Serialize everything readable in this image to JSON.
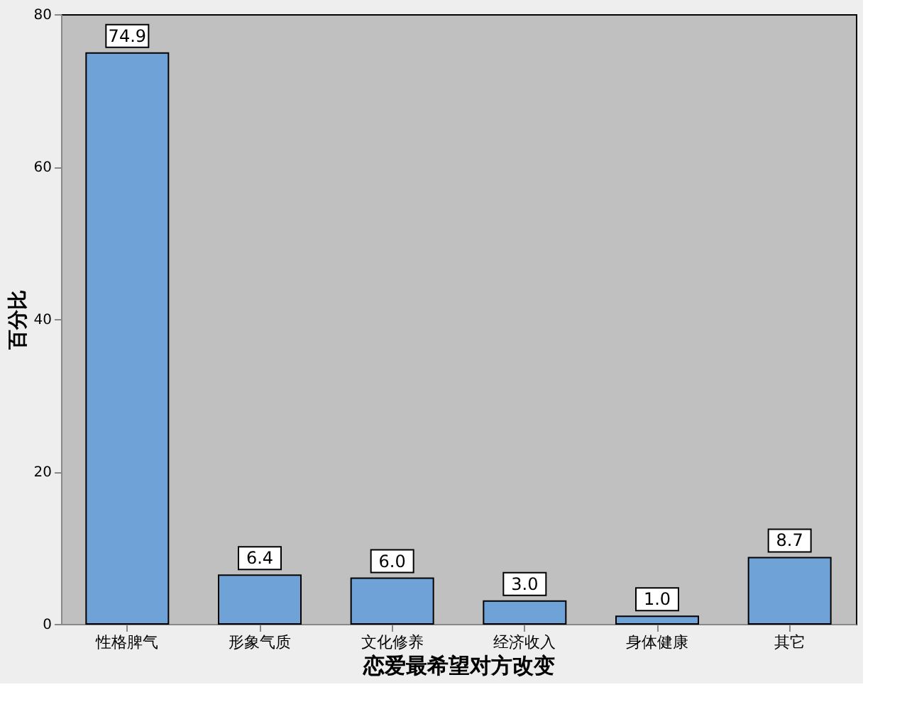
{
  "chart_data": {
    "type": "bar",
    "xlabel": "恋爱最希望对方改变",
    "ylabel": "百分比",
    "categories": [
      "性格脾气",
      "形象气质",
      "文化修养",
      "经济收入",
      "身体健康",
      "其它"
    ],
    "values": [
      74.9,
      6.4,
      6.0,
      3.0,
      1.0,
      8.7
    ],
    "color": "#6fa3d8",
    "ylim": [
      0,
      80
    ],
    "yticks": [
      0,
      20,
      40,
      60,
      80
    ],
    "grid": false,
    "value_labels": [
      "74.9",
      "6.4",
      "6.0",
      "3.0",
      "1.0",
      "8.7"
    ]
  }
}
